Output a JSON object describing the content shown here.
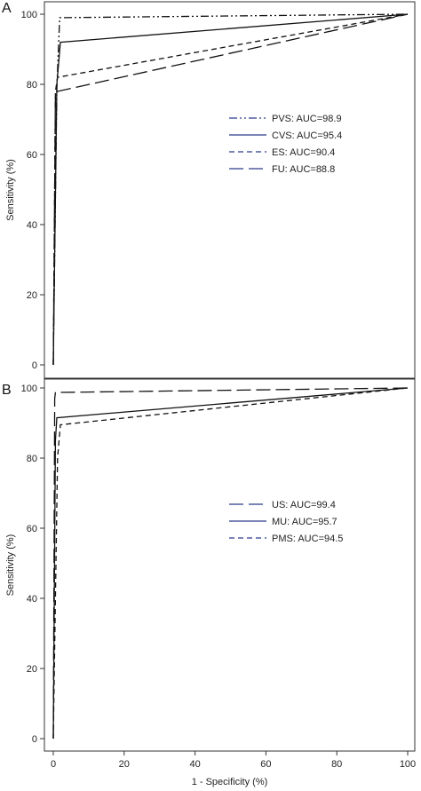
{
  "chart_data": [
    {
      "type": "line",
      "panel_label": "A",
      "xlabel": "",
      "ylabel": "Sensitivity (%)",
      "xlim": [
        0,
        100
      ],
      "ylim": [
        0,
        100
      ],
      "yticks": [
        "0",
        "20",
        "40",
        "60",
        "80",
        "100"
      ],
      "xticks": [],
      "legend_position": "center-right",
      "series": [
        {
          "name": "PVS: AUC=98.9",
          "dash": "dashdotdot",
          "x": [
            0,
            1.0,
            1.8,
            100
          ],
          "y": [
            0,
            79,
            99,
            100
          ]
        },
        {
          "name": "CVS: AUC=95.4",
          "dash": "solid",
          "x": [
            0,
            1.0,
            2.0,
            100
          ],
          "y": [
            0,
            80,
            92,
            100
          ]
        },
        {
          "name": "ES: AUC=90.4",
          "dash": "shortdash",
          "x": [
            0,
            0.6,
            1.2,
            100
          ],
          "y": [
            0,
            78,
            82,
            100
          ]
        },
        {
          "name": "FU: AUC=88.8",
          "dash": "longdash",
          "x": [
            0,
            0.6,
            1.2,
            100
          ],
          "y": [
            0,
            77,
            78,
            100
          ]
        }
      ]
    },
    {
      "type": "line",
      "panel_label": "B",
      "xlabel": "1 - Specificity (%)",
      "ylabel": "Sensitivity (%)",
      "xlim": [
        0,
        100
      ],
      "ylim": [
        0,
        100
      ],
      "yticks": [
        "0",
        "20",
        "40",
        "60",
        "80",
        "100"
      ],
      "xticks": [
        "0",
        "20",
        "40",
        "60",
        "80",
        "100"
      ],
      "legend_position": "center-right",
      "series": [
        {
          "name": "US: AUC=99.4",
          "dash": "longdash",
          "x": [
            0,
            0.4,
            0.6,
            100
          ],
          "y": [
            0,
            97,
            98.7,
            100
          ]
        },
        {
          "name": "MU: AUC=95.7",
          "dash": "solid",
          "x": [
            0,
            0.6,
            1.0,
            100
          ],
          "y": [
            0,
            85,
            91.5,
            100
          ]
        },
        {
          "name": "PMS: AUC=94.5",
          "dash": "shortdash",
          "x": [
            0,
            1.2,
            2.0,
            100
          ],
          "y": [
            0,
            80,
            89.5,
            100
          ]
        }
      ]
    }
  ]
}
